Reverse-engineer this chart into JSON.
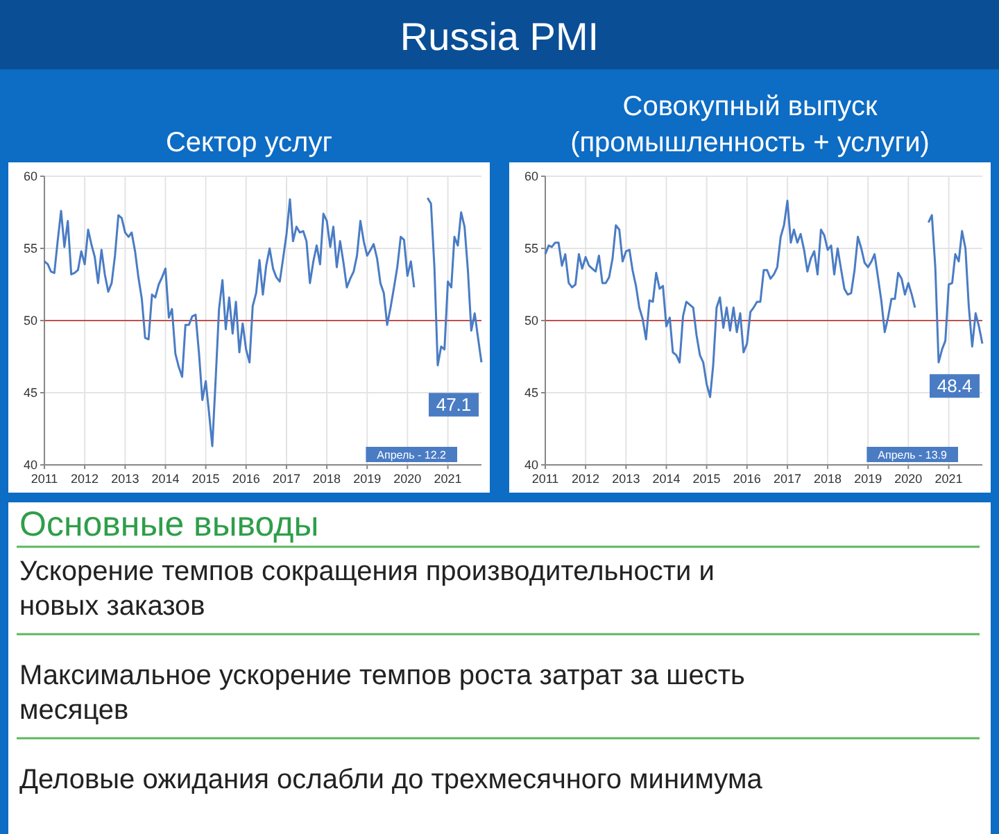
{
  "chart_data": [
    {
      "type": "other",
      "title": "Russia PMI"
    },
    {
      "type": "line",
      "title": "Сектор услуг",
      "x": [
        "2011-01",
        "2011-02",
        "2011-03",
        "2011-04",
        "2011-05",
        "2011-06",
        "2011-07",
        "2011-08",
        "2011-09",
        "2011-10",
        "2011-11",
        "2011-12",
        "2012-01",
        "2012-02",
        "2012-03",
        "2012-04",
        "2012-05",
        "2012-06",
        "2012-07",
        "2012-08",
        "2012-09",
        "2012-10",
        "2012-11",
        "2012-12",
        "2013-01",
        "2013-02",
        "2013-03",
        "2013-04",
        "2013-05",
        "2013-06",
        "2013-07",
        "2013-08",
        "2013-09",
        "2013-10",
        "2013-11",
        "2013-12",
        "2014-01",
        "2014-02",
        "2014-03",
        "2014-04",
        "2014-05",
        "2014-06",
        "2014-07",
        "2014-08",
        "2014-09",
        "2014-10",
        "2014-11",
        "2014-12",
        "2015-01",
        "2015-02",
        "2015-03",
        "2015-04",
        "2015-05",
        "2015-06",
        "2015-07",
        "2015-08",
        "2015-09",
        "2015-10",
        "2015-11",
        "2015-12",
        "2016-01",
        "2016-02",
        "2016-03",
        "2016-04",
        "2016-05",
        "2016-06",
        "2016-07",
        "2016-08",
        "2016-09",
        "2016-10",
        "2016-11",
        "2016-12",
        "2017-01",
        "2017-02",
        "2017-03",
        "2017-04",
        "2017-05",
        "2017-06",
        "2017-07",
        "2017-08",
        "2017-09",
        "2017-10",
        "2017-11",
        "2017-12",
        "2018-01",
        "2018-02",
        "2018-03",
        "2018-04",
        "2018-05",
        "2018-06",
        "2018-07",
        "2018-08",
        "2018-09",
        "2018-10",
        "2018-11",
        "2018-12",
        "2019-01",
        "2019-02",
        "2019-03",
        "2019-04",
        "2019-05",
        "2019-06",
        "2019-07",
        "2019-08",
        "2019-09",
        "2019-10",
        "2019-11",
        "2019-12",
        "2020-01",
        "2020-02",
        "2020-03",
        "2020-04",
        "2020-05",
        "2020-06",
        "2020-07",
        "2020-08",
        "2020-09",
        "2020-10",
        "2020-11",
        "2020-12",
        "2021-01",
        "2021-02",
        "2021-03",
        "2021-04",
        "2021-05",
        "2021-06",
        "2021-07",
        "2021-08",
        "2021-09",
        "2021-10",
        "2021-11"
      ],
      "series": [
        {
          "color": "#4a7cc4",
          "values": [
            54.1,
            53.9,
            53.4,
            53.3,
            55.5,
            57.6,
            55.1,
            56.9,
            53.2,
            53.3,
            53.5,
            54.8,
            53.9,
            56.3,
            55.3,
            54.4,
            52.6,
            54.9,
            53.2,
            52.0,
            52.6,
            54.5,
            57.3,
            57.1,
            56.1,
            55.8,
            56.1,
            54.8,
            53.0,
            51.5,
            48.8,
            48.7,
            51.8,
            51.6,
            52.5,
            53.0,
            53.6,
            50.2,
            50.8,
            47.7,
            46.8,
            46.1,
            49.7,
            49.7,
            50.3,
            50.4,
            47.7,
            44.5,
            45.8,
            43.5,
            41.3,
            46.0,
            50.8,
            52.8,
            49.4,
            51.6,
            49.1,
            51.3,
            47.8,
            49.8,
            48.0,
            47.1,
            51.0,
            51.9,
            54.2,
            51.8,
            53.8,
            55.0,
            53.6,
            53.0,
            52.7,
            54.3,
            56.0,
            58.4,
            55.5,
            56.5,
            56.1,
            56.2,
            55.5,
            52.6,
            54.1,
            55.2,
            53.9,
            57.4,
            56.9,
            55.1,
            56.5,
            53.7,
            55.5,
            54.0,
            52.3,
            52.9,
            53.4,
            54.5,
            56.9,
            55.5,
            54.5,
            54.9,
            55.3,
            54.3,
            52.6,
            51.9,
            49.7,
            50.9,
            52.3,
            53.7,
            55.8,
            55.6,
            53.1,
            54.1,
            52.3,
            null,
            null,
            null,
            58.5,
            58.1,
            53.7,
            46.9,
            48.2,
            48.0,
            52.7,
            52.3,
            55.8,
            55.2,
            57.5,
            56.5,
            53.5,
            49.3,
            50.5,
            48.8,
            47.1
          ]
        }
      ],
      "xlim": [
        "2011-01",
        "2021-11"
      ],
      "xticks": [
        "2011",
        "2012",
        "2013",
        "2014",
        "2015",
        "2016",
        "2017",
        "2018",
        "2019",
        "2020",
        "2021"
      ],
      "ylim": [
        40,
        60
      ],
      "yticks": [
        40,
        45,
        50,
        55,
        60
      ],
      "grid": true,
      "ref_lines": [
        {
          "axis": "y",
          "value": 50,
          "color": "#c0504d"
        }
      ],
      "annotations": [
        {
          "text": "47.1",
          "x": "2021-11",
          "y": 47.1
        },
        "Апрель - 12.2"
      ]
    },
    {
      "type": "line",
      "title": "Совокупный выпуск (промышленность + услуги)",
      "x": [
        "2011-01",
        "2011-02",
        "2011-03",
        "2011-04",
        "2011-05",
        "2011-06",
        "2011-07",
        "2011-08",
        "2011-09",
        "2011-10",
        "2011-11",
        "2011-12",
        "2012-01",
        "2012-02",
        "2012-03",
        "2012-04",
        "2012-05",
        "2012-06",
        "2012-07",
        "2012-08",
        "2012-09",
        "2012-10",
        "2012-11",
        "2012-12",
        "2013-01",
        "2013-02",
        "2013-03",
        "2013-04",
        "2013-05",
        "2013-06",
        "2013-07",
        "2013-08",
        "2013-09",
        "2013-10",
        "2013-11",
        "2013-12",
        "2014-01",
        "2014-02",
        "2014-03",
        "2014-04",
        "2014-05",
        "2014-06",
        "2014-07",
        "2014-08",
        "2014-09",
        "2014-10",
        "2014-11",
        "2014-12",
        "2015-01",
        "2015-02",
        "2015-03",
        "2015-04",
        "2015-05",
        "2015-06",
        "2015-07",
        "2015-08",
        "2015-09",
        "2015-10",
        "2015-11",
        "2015-12",
        "2016-01",
        "2016-02",
        "2016-03",
        "2016-04",
        "2016-05",
        "2016-06",
        "2016-07",
        "2016-08",
        "2016-09",
        "2016-10",
        "2016-11",
        "2016-12",
        "2017-01",
        "2017-02",
        "2017-03",
        "2017-04",
        "2017-05",
        "2017-06",
        "2017-07",
        "2017-08",
        "2017-09",
        "2017-10",
        "2017-11",
        "2017-12",
        "2018-01",
        "2018-02",
        "2018-03",
        "2018-04",
        "2018-05",
        "2018-06",
        "2018-07",
        "2018-08",
        "2018-09",
        "2018-10",
        "2018-11",
        "2018-12",
        "2019-01",
        "2019-02",
        "2019-03",
        "2019-04",
        "2019-05",
        "2019-06",
        "2019-07",
        "2019-08",
        "2019-09",
        "2019-10",
        "2019-11",
        "2019-12",
        "2020-01",
        "2020-02",
        "2020-03",
        "2020-04",
        "2020-05",
        "2020-06",
        "2020-07",
        "2020-08",
        "2020-09",
        "2020-10",
        "2020-11",
        "2020-12",
        "2021-01",
        "2021-02",
        "2021-03",
        "2021-04",
        "2021-05",
        "2021-06",
        "2021-07",
        "2021-08",
        "2021-09",
        "2021-10",
        "2021-11"
      ],
      "series": [
        {
          "color": "#4a7cc4",
          "values": [
            54.6,
            55.2,
            55.1,
            55.4,
            55.4,
            53.8,
            54.6,
            52.6,
            52.3,
            52.5,
            54.6,
            53.6,
            54.4,
            53.8,
            53.6,
            53.4,
            54.5,
            52.6,
            52.6,
            53.0,
            54.3,
            56.6,
            56.3,
            54.1,
            54.8,
            54.9,
            53.5,
            52.4,
            50.9,
            50.1,
            48.7,
            51.4,
            51.3,
            53.3,
            52.2,
            52.4,
            49.6,
            50.2,
            47.8,
            47.6,
            47.1,
            50.3,
            51.3,
            51.1,
            50.9,
            49.0,
            47.6,
            47.1,
            45.6,
            44.7,
            46.9,
            50.9,
            51.6,
            49.5,
            50.9,
            49.3,
            50.9,
            49.2,
            50.5,
            47.8,
            48.4,
            50.6,
            50.9,
            51.3,
            51.3,
            53.5,
            53.5,
            52.9,
            53.2,
            53.7,
            55.8,
            56.6,
            58.3,
            55.4,
            56.3,
            55.4,
            56.0,
            54.9,
            53.4,
            54.3,
            54.8,
            53.2,
            56.3,
            55.9,
            54.9,
            55.2,
            53.2,
            55.0,
            53.6,
            52.2,
            51.8,
            51.9,
            53.5,
            55.8,
            55.0,
            54.0,
            53.7,
            54.1,
            54.6,
            53.0,
            51.4,
            49.2,
            50.2,
            51.5,
            51.5,
            53.3,
            52.9,
            51.8,
            52.6,
            51.8,
            50.9,
            null,
            null,
            null,
            56.8,
            57.3,
            53.7,
            47.1,
            48.0,
            48.6,
            52.5,
            52.6,
            54.6,
            54.1,
            56.2,
            55.0,
            51.0,
            48.2,
            50.5,
            49.6,
            48.4
          ]
        }
      ],
      "xlim": [
        "2011-01",
        "2021-11"
      ],
      "xticks": [
        "2011",
        "2012",
        "2013",
        "2014",
        "2015",
        "2016",
        "2017",
        "2018",
        "2019",
        "2020",
        "2021"
      ],
      "ylim": [
        40,
        60
      ],
      "yticks": [
        40,
        45,
        50,
        55,
        60
      ],
      "grid": true,
      "ref_lines": [
        {
          "axis": "y",
          "value": 50,
          "color": "#c0504d"
        }
      ],
      "annotations": [
        {
          "text": "48.4",
          "x": "2021-11",
          "y": 48.4
        },
        "Апрель - 13.9"
      ]
    },
    {
      "type": "other",
      "title": "Основные выводы",
      "annotations": [
        "Ускорение темпов сокращения производительности и новых заказов",
        "Максимальное ускорение темпов роста затрат за шесть месяцев",
        "Деловые ожидания ослабли до трехмесячного минимума"
      ]
    }
  ]
}
